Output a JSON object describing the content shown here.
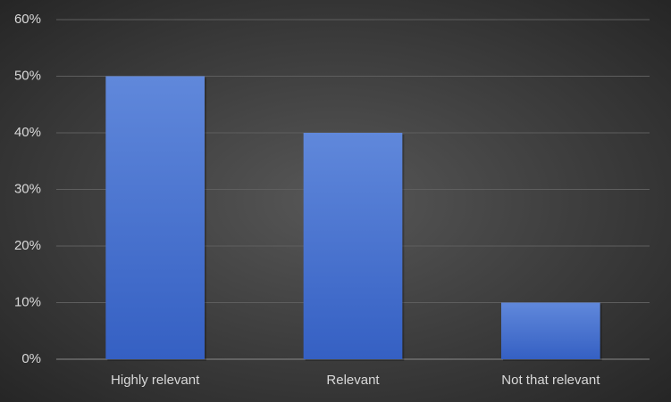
{
  "chart_data": {
    "type": "bar",
    "categories": [
      "Highly relevant",
      "Relevant",
      "Not that relevant"
    ],
    "values": [
      50,
      40,
      10
    ],
    "color": "#4472c4",
    "ylim": [
      0,
      60
    ],
    "yticks": [
      {
        "value": 0,
        "label": "0%"
      },
      {
        "value": 10,
        "label": "10%"
      },
      {
        "value": 20,
        "label": "20%"
      },
      {
        "value": 30,
        "label": "30%"
      },
      {
        "value": 40,
        "label": "40%"
      },
      {
        "value": 50,
        "label": "50%"
      },
      {
        "value": 60,
        "label": "60%"
      }
    ],
    "grid": true
  }
}
